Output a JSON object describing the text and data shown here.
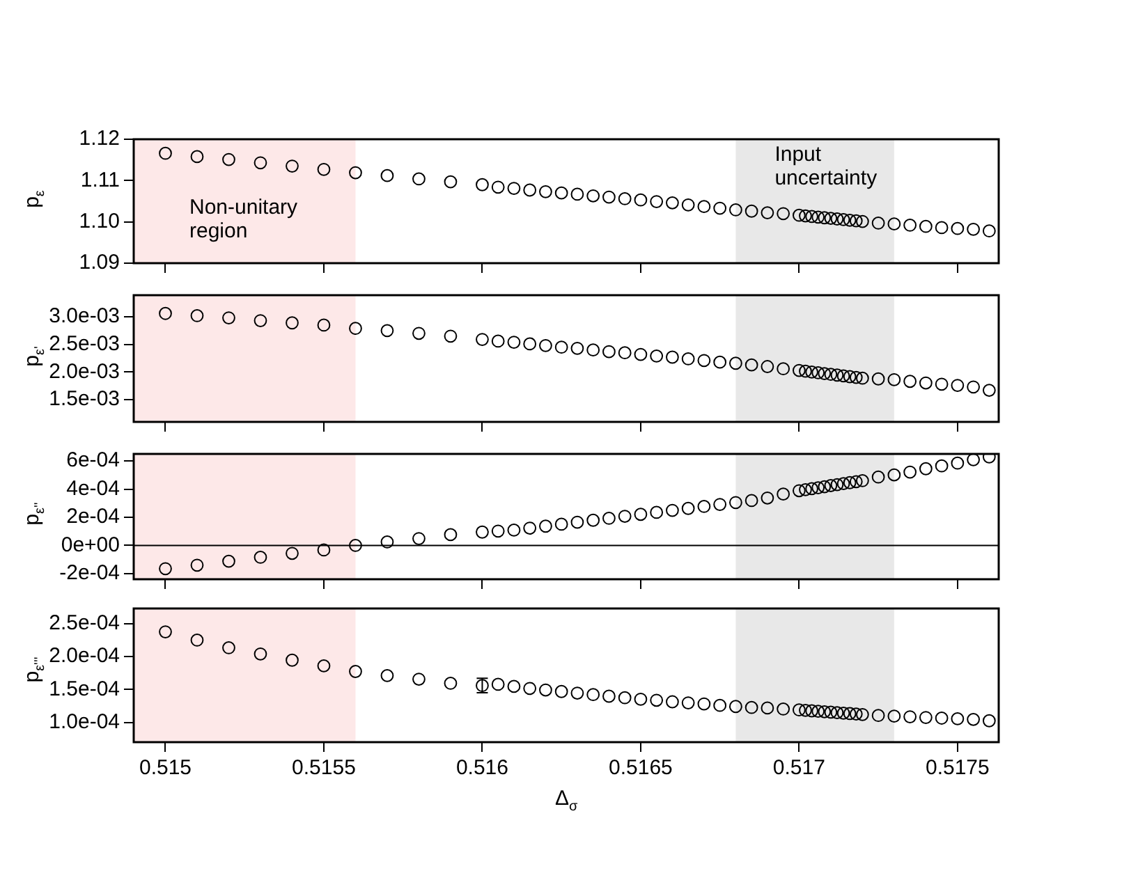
{
  "chart_data": [
    {
      "type": "scatter",
      "ylabel": "p$_{ε}$",
      "marker": "circle",
      "color": "#000000",
      "tick_labels": "y",
      "x": [
        0.515,
        0.5151,
        0.5152,
        0.5153,
        0.5154,
        0.5155,
        0.5156,
        0.5157,
        0.5158,
        0.5159,
        0.516,
        0.51605,
        0.5161,
        0.51615,
        0.5162,
        0.51625,
        0.5163,
        0.51635,
        0.5164,
        0.51645,
        0.5165,
        0.51655,
        0.5166,
        0.51665,
        0.5167,
        0.51675,
        0.5168,
        0.51685,
        0.5169,
        0.51695,
        0.517,
        0.51702,
        0.51704,
        0.51706,
        0.51708,
        0.5171,
        0.51712,
        0.51714,
        0.51716,
        0.51718,
        0.5172,
        0.51725,
        0.5173,
        0.51735,
        0.5174,
        0.51745,
        0.5175,
        0.51755,
        0.5176
      ],
      "values": [
        1.1166,
        1.1158,
        1.1151,
        1.1143,
        1.1135,
        1.1127,
        1.1119,
        1.1112,
        1.1104,
        1.1097,
        1.109,
        1.1084,
        1.1081,
        1.1077,
        1.1073,
        1.107,
        1.1067,
        1.1063,
        1.106,
        1.1056,
        1.1053,
        1.1049,
        1.1046,
        1.1041,
        1.1037,
        1.1033,
        1.1029,
        1.1026,
        1.1022,
        1.102,
        1.1016,
        1.10145,
        1.1013,
        1.10115,
        1.101,
        1.10085,
        1.1007,
        1.10055,
        1.1004,
        1.10025,
        1.1001,
        1.0997,
        1.0995,
        1.0992,
        1.0989,
        1.0986,
        1.0984,
        1.0982,
        1.0978
      ],
      "xlim": [
        0.5149,
        0.51763
      ],
      "xticks": [
        0.515,
        0.5155,
        0.516,
        0.5165,
        0.517,
        0.5175
      ],
      "ylim": [
        1.09,
        1.12
      ],
      "yticks": [
        {
          "value": 1.09,
          "label": "1.09"
        },
        {
          "value": 1.1,
          "label": "1.10"
        },
        {
          "value": 1.11,
          "label": "1.11"
        },
        {
          "value": 1.12,
          "label": "1.12"
        }
      ],
      "bands": [
        {
          "axis": "x",
          "from": 0.5149,
          "to": 0.5156,
          "color": "#fde8e8",
          "label": "Non-unitary\nregion"
        },
        {
          "axis": "x",
          "from": 0.5168,
          "to": 0.5173,
          "color": "#e8e8e8",
          "label": "Input\nuncertainty"
        }
      ]
    },
    {
      "type": "scatter",
      "ylabel": "p$_{ε'}$",
      "marker": "circle",
      "color": "#000000",
      "tick_labels": "y",
      "x": [
        0.515,
        0.5151,
        0.5152,
        0.5153,
        0.5154,
        0.5155,
        0.5156,
        0.5157,
        0.5158,
        0.5159,
        0.516,
        0.51605,
        0.5161,
        0.51615,
        0.5162,
        0.51625,
        0.5163,
        0.51635,
        0.5164,
        0.51645,
        0.5165,
        0.51655,
        0.5166,
        0.51665,
        0.5167,
        0.51675,
        0.5168,
        0.51685,
        0.5169,
        0.51695,
        0.517,
        0.51702,
        0.51704,
        0.51706,
        0.51708,
        0.5171,
        0.51712,
        0.51714,
        0.51716,
        0.51718,
        0.5172,
        0.51725,
        0.5173,
        0.51735,
        0.5174,
        0.51745,
        0.5175,
        0.51755,
        0.5176
      ],
      "values": [
        0.00306,
        0.00302,
        0.00298,
        0.00293,
        0.00289,
        0.00285,
        0.00279,
        0.00275,
        0.0027,
        0.00265,
        0.00259,
        0.00256,
        0.00254,
        0.00251,
        0.00248,
        0.00245,
        0.00243,
        0.0024,
        0.00237,
        0.00235,
        0.00232,
        0.00229,
        0.00227,
        0.00224,
        0.00221,
        0.00218,
        0.00216,
        0.00213,
        0.0021,
        0.00206,
        0.00203,
        0.002016,
        0.002002,
        0.001988,
        0.001974,
        0.00196,
        0.001946,
        0.001932,
        0.001918,
        0.001904,
        0.00189,
        0.001877,
        0.001864,
        0.001833,
        0.001804,
        0.001782,
        0.00176,
        0.001731,
        0.001671
      ],
      "xlim": [
        0.5149,
        0.51763
      ],
      "xticks": [
        0.515,
        0.5155,
        0.516,
        0.5165,
        0.517,
        0.5175
      ],
      "ylim": [
        0.0011,
        0.00339
      ],
      "yticks": [
        {
          "value": 0.0015,
          "label": "1.5e-03"
        },
        {
          "value": 0.002,
          "label": "2.0e-03"
        },
        {
          "value": 0.0025,
          "label": "2.5e-03"
        },
        {
          "value": 0.003,
          "label": "3.0e-03"
        }
      ],
      "bands": [
        {
          "axis": "x",
          "from": 0.5149,
          "to": 0.5156,
          "color": "#fde8e8"
        },
        {
          "axis": "x",
          "from": 0.5168,
          "to": 0.5173,
          "color": "#e8e8e8"
        }
      ]
    },
    {
      "type": "scatter",
      "ylabel": "p$_{ε''}$",
      "marker": "circle",
      "color": "#000000",
      "tick_labels": "y",
      "x": [
        0.515,
        0.5151,
        0.5152,
        0.5153,
        0.5154,
        0.5155,
        0.5156,
        0.5157,
        0.5158,
        0.5159,
        0.516,
        0.51605,
        0.5161,
        0.51615,
        0.5162,
        0.51625,
        0.5163,
        0.51635,
        0.5164,
        0.51645,
        0.5165,
        0.51655,
        0.5166,
        0.51665,
        0.5167,
        0.51675,
        0.5168,
        0.51685,
        0.5169,
        0.51695,
        0.517,
        0.51702,
        0.51704,
        0.51706,
        0.51708,
        0.5171,
        0.51712,
        0.51714,
        0.51716,
        0.51718,
        0.5172,
        0.51725,
        0.5173,
        0.51735,
        0.5174,
        0.51745,
        0.5175,
        0.51755,
        0.5176
      ],
      "values": [
        -0.000165,
        -0.00014,
        -0.000112,
        -8.4e-05,
        -5.6e-05,
        -3.2e-05,
        0,
        2.5e-05,
        4.9e-05,
        7.7e-05,
        9.5e-05,
        0.000102,
        0.000109,
        0.000123,
        0.000137,
        0.000151,
        0.000165,
        0.000179,
        0.000193,
        0.000207,
        0.000221,
        0.000235,
        0.000249,
        0.000263,
        0.000277,
        0.000291,
        0.000305,
        0.000319,
        0.000337,
        0.000365,
        0.000389,
        0.000396,
        0.000403,
        0.00041,
        0.000417,
        0.000425,
        0.000432,
        0.000439,
        0.000446,
        0.000453,
        0.00046,
        0.000486,
        0.000501,
        0.000521,
        0.000545,
        0.000565,
        0.000585,
        0.000609,
        0.000629
      ],
      "xlim": [
        0.5149,
        0.51763
      ],
      "xticks": [
        0.515,
        0.5155,
        0.516,
        0.5165,
        0.517,
        0.5175
      ],
      "ylim": [
        -0.00024,
        0.00065
      ],
      "yticks": [
        {
          "value": -0.0002,
          "label": "-2e-04"
        },
        {
          "value": 0,
          "label": "0e+00"
        },
        {
          "value": 0.0002,
          "label": "2e-04"
        },
        {
          "value": 0.0004,
          "label": "4e-04"
        },
        {
          "value": 0.0006,
          "label": "6e-04"
        }
      ],
      "ref_lines": [
        {
          "axis": "y",
          "value": 0,
          "color": "#000000"
        }
      ],
      "bands": [
        {
          "axis": "x",
          "from": 0.5149,
          "to": 0.5156,
          "color": "#fde8e8"
        },
        {
          "axis": "x",
          "from": 0.5168,
          "to": 0.5173,
          "color": "#e8e8e8"
        }
      ]
    },
    {
      "type": "scatter",
      "xlabel": "Δ$_{σ}$",
      "ylabel": "p$_{ε'''}$",
      "marker": "circle",
      "color": "#000000",
      "x": [
        0.515,
        0.5151,
        0.5152,
        0.5153,
        0.5154,
        0.5155,
        0.5156,
        0.5157,
        0.5158,
        0.5159,
        0.516,
        0.51605,
        0.5161,
        0.51615,
        0.5162,
        0.51625,
        0.5163,
        0.51635,
        0.5164,
        0.51645,
        0.5165,
        0.51655,
        0.5166,
        0.51665,
        0.5167,
        0.51675,
        0.5168,
        0.51685,
        0.5169,
        0.51695,
        0.517,
        0.51702,
        0.51704,
        0.51706,
        0.51708,
        0.5171,
        0.51712,
        0.51714,
        0.51716,
        0.51718,
        0.5172,
        0.51725,
        0.5173,
        0.51735,
        0.5174,
        0.51745,
        0.5175,
        0.51755,
        0.5176
      ],
      "values": [
        0.0002375,
        0.000225,
        0.0002133,
        0.0002039,
        0.0001945,
        0.0001859,
        0.0001773,
        0.0001711,
        0.0001656,
        0.0001594,
        0.000156,
        0.0001578,
        0.0001547,
        0.0001516,
        0.0001492,
        0.0001469,
        0.0001445,
        0.0001422,
        0.0001398,
        0.0001375,
        0.0001352,
        0.0001336,
        0.0001313,
        0.0001297,
        0.0001281,
        0.0001258,
        0.0001242,
        0.0001227,
        0.0001219,
        0.0001203,
        0.000119,
        0.0001183,
        0.0001176,
        0.0001169,
        0.0001162,
        0.0001155,
        0.0001148,
        0.0001141,
        0.0001134,
        0.0001127,
        0.000112,
        0.0001105,
        0.0001095,
        0.0001085,
        0.0001075,
        0.0001065,
        0.0001055,
        0.0001045,
        0.0001025
      ],
      "errors": [
        null,
        null,
        null,
        null,
        null,
        null,
        null,
        null,
        null,
        null,
        1.1e-05,
        null,
        null,
        null,
        null,
        null,
        null,
        null,
        null,
        null,
        null,
        null,
        null,
        null,
        null,
        null,
        null,
        null,
        null,
        null,
        null,
        null,
        null,
        null,
        null,
        null,
        null,
        null,
        null,
        null,
        null,
        null,
        null,
        null,
        null,
        null,
        null,
        null,
        null
      ],
      "xlim": [
        0.5149,
        0.51763
      ],
      "xticks": [
        0.515,
        0.5155,
        0.516,
        0.5165,
        0.517,
        0.5175
      ],
      "ylim": [
        7e-05,
        0.000273
      ],
      "yticks": [
        {
          "value": 0.0001,
          "label": "1.0e-04"
        },
        {
          "value": 0.00015,
          "label": "1.5e-04"
        },
        {
          "value": 0.0002,
          "label": "2.0e-04"
        },
        {
          "value": 0.00025,
          "label": "2.5e-04"
        }
      ],
      "bands": [
        {
          "axis": "x",
          "from": 0.5149,
          "to": 0.5156,
          "color": "#fde8e8"
        },
        {
          "axis": "x",
          "from": 0.5168,
          "to": 0.5173,
          "color": "#e8e8e8"
        }
      ]
    }
  ]
}
